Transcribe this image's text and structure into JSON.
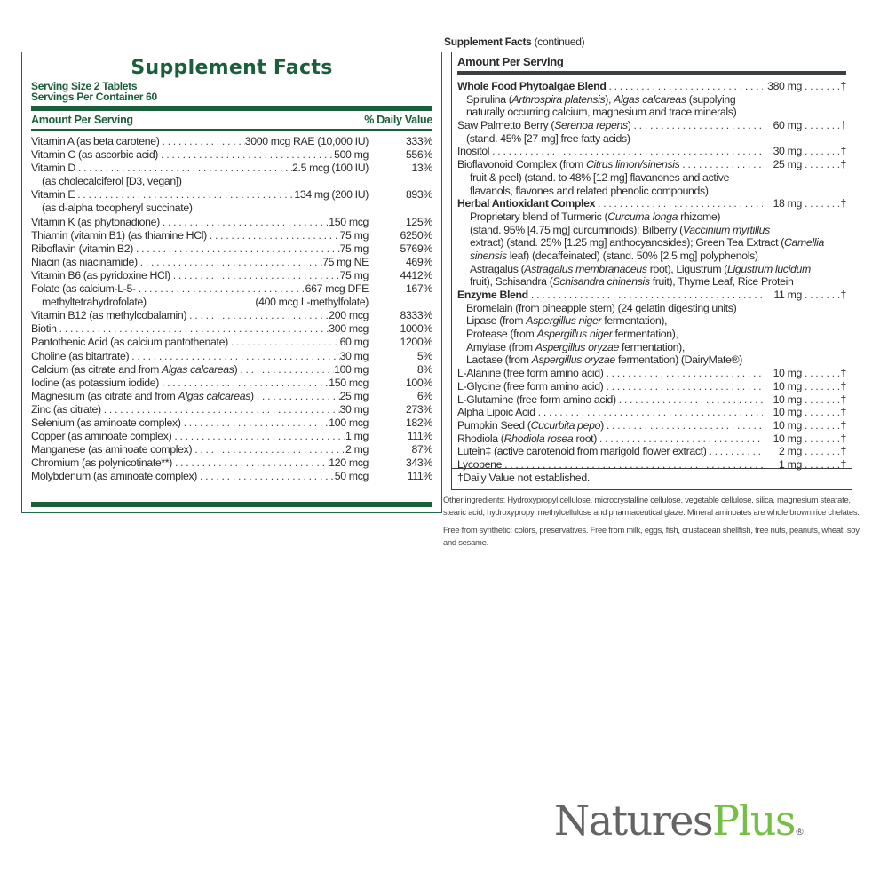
{
  "left": {
    "title": "Supplement Facts",
    "serving_size": "Serving Size 2 Tablets",
    "servings_per_container": "Servings Per Container 60",
    "col_amount": "Amount Per Serving",
    "col_dv": "% Daily Value",
    "rows": [
      {
        "name": [
          {
            "t": "Vitamin A (as beta carotene)"
          }
        ],
        "amount": "3000 mcg RAE (10,000 IU)",
        "dv": "333%"
      },
      {
        "name": [
          {
            "t": "Vitamin C (as ascorbic acid)"
          }
        ],
        "amount": "500 mg",
        "dv": "556%"
      },
      {
        "name": [
          {
            "t": "Vitamin D"
          }
        ],
        "amount": "2.5 mcg (100 IU)",
        "dv": "13%"
      },
      {
        "sub": "(as cholecalciferol [D3, vegan])"
      },
      {
        "name": [
          {
            "t": "Vitamin E"
          }
        ],
        "amount": "134 mg (200 IU)",
        "dv": "893%"
      },
      {
        "sub": "(as d-alpha tocopheryl succinate)"
      },
      {
        "name": [
          {
            "t": "Vitamin K (as phytonadione)"
          }
        ],
        "amount": "150 mcg",
        "dv": "125%"
      },
      {
        "name": [
          {
            "t": "Thiamin (vitamin B1) (as thiamine HCl)"
          }
        ],
        "amount": "75 mg",
        "dv": "6250%"
      },
      {
        "name": [
          {
            "t": "Riboflavin (vitamin B2)"
          }
        ],
        "amount": "75 mg",
        "dv": "5769%"
      },
      {
        "name": [
          {
            "t": "Niacin (as niacinamide)"
          }
        ],
        "amount": "75 mg NE",
        "dv": "469%"
      },
      {
        "name": [
          {
            "t": "Vitamin B6 (as pyridoxine HCl)"
          }
        ],
        "amount": "75 mg",
        "dv": "4412%"
      },
      {
        "name": [
          {
            "t": "Folate (as calcium-L-5-"
          }
        ],
        "amount": "667 mcg DFE",
        "dv": "167%"
      },
      {
        "sub": "methyltetrahydrofolate)",
        "sub_amount": "(400 mcg L-methylfolate)"
      },
      {
        "name": [
          {
            "t": "Vitamin B12 (as methylcobalamin)"
          }
        ],
        "amount": "200 mcg",
        "dv": "8333%"
      },
      {
        "name": [
          {
            "t": "Biotin"
          }
        ],
        "amount": "300 mcg",
        "dv": "1000%"
      },
      {
        "name": [
          {
            "t": "Pantothenic Acid (as calcium pantothenate)"
          }
        ],
        "amount": "60 mg",
        "dv": "1200%"
      },
      {
        "name": [
          {
            "t": "Choline (as bitartrate)"
          }
        ],
        "amount": "30 mg",
        "dv": "5%"
      },
      {
        "name": [
          {
            "t": "Calcium (as citrate and from "
          },
          {
            "t": "Algas calcareas",
            "i": true
          },
          {
            "t": ")"
          }
        ],
        "amount": "100 mg",
        "dv": "8%"
      },
      {
        "name": [
          {
            "t": "Iodine (as potassium iodide)"
          }
        ],
        "amount": "150 mcg",
        "dv": "100%"
      },
      {
        "name": [
          {
            "t": "Magnesium (as citrate and from "
          },
          {
            "t": "Algas calcareas",
            "i": true
          },
          {
            "t": ")"
          }
        ],
        "amount": "25 mg",
        "dv": "6%"
      },
      {
        "name": [
          {
            "t": "Zinc (as citrate)"
          }
        ],
        "amount": "30 mg",
        "dv": "273%"
      },
      {
        "name": [
          {
            "t": "Selenium (as aminoate complex)"
          }
        ],
        "amount": "100 mcg",
        "dv": "182%"
      },
      {
        "name": [
          {
            "t": "Copper (as aminoate complex)"
          }
        ],
        "amount": "1 mg",
        "dv": "111%"
      },
      {
        "name": [
          {
            "t": "Manganese (as aminoate complex)"
          }
        ],
        "amount": "2 mg",
        "dv": "87%"
      },
      {
        "name": [
          {
            "t": "Chromium (as polynicotinate**)"
          }
        ],
        "amount": "120 mcg",
        "dv": "343%"
      },
      {
        "name": [
          {
            "t": "Molybdenum (as aminoate complex)"
          }
        ],
        "amount": "50 mcg",
        "dv": "111%"
      }
    ]
  },
  "right": {
    "continued_title": "Supplement Facts",
    "continued_suffix": "(continued)",
    "col_amount": "Amount Per Serving",
    "rows": [
      {
        "name": [
          {
            "t": "Whole Food Phytoalgae Blend",
            "b": true
          }
        ],
        "amount": "380 mg",
        "dv": "†"
      },
      {
        "text": [
          {
            "t": "Spirulina ("
          },
          {
            "t": "Arthrospira platensis",
            "i": true
          },
          {
            "t": "), "
          },
          {
            "t": "Algas calcareas",
            "i": true
          },
          {
            "t": " (supplying"
          }
        ],
        "indent": 1
      },
      {
        "text": [
          {
            "t": "naturally occurring calcium, magnesium and trace minerals)"
          }
        ],
        "indent": 1
      },
      {
        "name": [
          {
            "t": " Saw Palmetto Berry ("
          },
          {
            "t": "Serenoa repens",
            "i": true
          },
          {
            "t": ")"
          }
        ],
        "amount": "60 mg",
        "dv": "†"
      },
      {
        "text": [
          {
            "t": "(stand. 45% [27 mg] free fatty acids)"
          }
        ],
        "indent": 1
      },
      {
        "name": [
          {
            "t": "Inositol"
          }
        ],
        "amount": "30 mg",
        "dv": "†"
      },
      {
        "name": [
          {
            "t": "Bioflavonoid Complex (from "
          },
          {
            "t": "Citrus limon/sinensis",
            "i": true
          }
        ],
        "amount": "25 mg",
        "dv": "†"
      },
      {
        "text": [
          {
            "t": "fruit & peel) (stand. to 48% [12 mg] flavanones and active"
          }
        ],
        "indent": 2
      },
      {
        "text": [
          {
            "t": "flavanols, flavones and related phenolic compounds)"
          }
        ],
        "indent": 2
      },
      {
        "name": [
          {
            "t": "Herbal Antioxidant Complex",
            "b": true
          }
        ],
        "amount": "18 mg",
        "dv": "†"
      },
      {
        "text": [
          {
            "t": "Proprietary blend of Turmeric ("
          },
          {
            "t": "Curcuma longa",
            "i": true
          },
          {
            "t": " rhizome)"
          }
        ],
        "indent": 2
      },
      {
        "text": [
          {
            "t": "(stand. 95% [4.75 mg] curcuminoids); Bilberry ("
          },
          {
            "t": "Vaccinium myrtillus",
            "i": true
          }
        ],
        "indent": 2
      },
      {
        "text": [
          {
            "t": "extract) (stand. 25% [1.25 mg] anthocyanosides); Green Tea Extract ("
          },
          {
            "t": "Camellia",
            "i": true
          }
        ],
        "indent": 2
      },
      {
        "text": [
          {
            "t": "sinensis",
            "i": true
          },
          {
            "t": " leaf) (decaffeinated) (stand. 50% [2.5 mg] polyphenols)"
          }
        ],
        "indent": 2
      },
      {
        "text": [
          {
            "t": "Astragalus ("
          },
          {
            "t": "Astragalus membranaceus",
            "i": true
          },
          {
            "t": " root), Ligustrum ("
          },
          {
            "t": "Ligustrum lucidum",
            "i": true
          }
        ],
        "indent": 2
      },
      {
        "text": [
          {
            "t": "fruit), Schisandra ("
          },
          {
            "t": "Schisandra chinensis",
            "i": true
          },
          {
            "t": " fruit), Thyme Leaf, Rice Protein"
          }
        ],
        "indent": 2
      },
      {
        "name": [
          {
            "t": "Enzyme Blend",
            "b": true
          }
        ],
        "amount": "11 mg",
        "dv": "†"
      },
      {
        "text": [
          {
            "t": "Bromelain (from pineapple stem) (24 gelatin digesting units)"
          }
        ],
        "indent": 1
      },
      {
        "text": [
          {
            "t": "Lipase (from "
          },
          {
            "t": "Aspergillus niger",
            "i": true
          },
          {
            "t": " fermentation),"
          }
        ],
        "indent": 1
      },
      {
        "text": [
          {
            "t": "Protease (from "
          },
          {
            "t": "Aspergillus niger",
            "i": true
          },
          {
            "t": " fermentation),"
          }
        ],
        "indent": 1
      },
      {
        "text": [
          {
            "t": "Amylase (from "
          },
          {
            "t": "Aspergillus oryzae",
            "i": true
          },
          {
            "t": " fermentation),"
          }
        ],
        "indent": 1
      },
      {
        "text": [
          {
            "t": "Lactase (from "
          },
          {
            "t": "Aspergillus oryzae",
            "i": true
          },
          {
            "t": " fermentation) (DairyMate®)"
          }
        ],
        "indent": 1
      },
      {
        "name": [
          {
            "t": "L-Alanine (free form amino acid)"
          }
        ],
        "amount": "10 mg",
        "dv": "†"
      },
      {
        "name": [
          {
            "t": "L-Glycine (free form amino acid)"
          }
        ],
        "amount": "10 mg",
        "dv": "†"
      },
      {
        "name": [
          {
            "t": "L-Glutamine (free form amino acid)"
          }
        ],
        "amount": "10 mg",
        "dv": "†"
      },
      {
        "name": [
          {
            "t": "Alpha Lipoic Acid"
          }
        ],
        "amount": "10 mg",
        "dv": "†"
      },
      {
        "name": [
          {
            "t": "Pumpkin Seed ("
          },
          {
            "t": "Cucurbita pepo",
            "i": true
          },
          {
            "t": ")"
          }
        ],
        "amount": "10 mg",
        "dv": "†"
      },
      {
        "name": [
          {
            "t": "Rhodiola ("
          },
          {
            "t": "Rhodiola rosea",
            "i": true
          },
          {
            "t": " root)"
          }
        ],
        "amount": "10 mg",
        "dv": "†"
      },
      {
        "name": [
          {
            "t": "Lutein‡ (active carotenoid from marigold flower extract)"
          }
        ],
        "amount": "2 mg",
        "dv": "†"
      },
      {
        "name": [
          {
            "t": "Lycopene"
          }
        ],
        "amount": "1 mg",
        "dv": "†"
      }
    ],
    "footnote": "†Daily Value not established."
  },
  "other_ingredients": "Other ingredients: Hydroxypropyl cellulose, microcrystalline cellulose, vegetable cellulose, silica, magnesium stearate, stearic acid, hydroxypropyl methylcellulose and pharmaceutical glaze. Mineral aminoates are whole brown rice chelates.",
  "free_from": "Free from synthetic: colors, preservatives. Free from milk, eggs, fish, crustacean shellfish, tree nuts, peanuts, wheat, soy and sesame.",
  "logo": {
    "part1": "Natures",
    "part2": "Plus",
    "reg": "®"
  },
  "colors": {
    "label_green": "#1b5e3b",
    "logo_gray": "#636466",
    "logo_green": "#74bf44",
    "right_border": "#3a3f44"
  }
}
